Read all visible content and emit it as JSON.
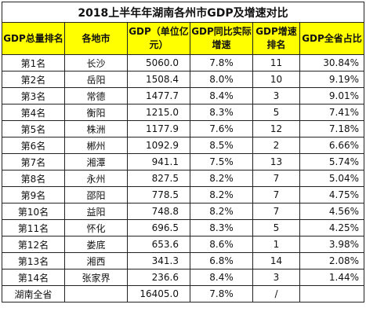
{
  "title": "2018上半年年湖南各州市GDP及增速对比",
  "headers": [
    "GDP总量排名",
    "各地市",
    "GDP（单位亿元）",
    "GDP同比实际增速",
    "GDP增速排名",
    "GDP全省占比"
  ],
  "rows": [
    {
      "rank": "第1名",
      "city": "长沙",
      "gdp": "5060.0",
      "growth": "7.8%",
      "growth_rank": "11",
      "share": "30.84%"
    },
    {
      "rank": "第2名",
      "city": "岳阳",
      "gdp": "1508.4",
      "growth": "8.0%",
      "growth_rank": "10",
      "share": "9.19%"
    },
    {
      "rank": "第3名",
      "city": "常德",
      "gdp": "1477.7",
      "growth": "8.4%",
      "growth_rank": "3",
      "share": "9.01%"
    },
    {
      "rank": "第4名",
      "city": "衡阳",
      "gdp": "1215.0",
      "growth": "8.3%",
      "growth_rank": "5",
      "share": "7.41%"
    },
    {
      "rank": "第5名",
      "city": "株洲",
      "gdp": "1177.9",
      "growth": "7.6%",
      "growth_rank": "12",
      "share": "7.18%"
    },
    {
      "rank": "第6名",
      "city": "郴州",
      "gdp": "1092.9",
      "growth": "8.5%",
      "growth_rank": "2",
      "share": "6.66%"
    },
    {
      "rank": "第7名",
      "city": "湘潭",
      "gdp": "941.1",
      "growth": "7.5%",
      "growth_rank": "13",
      "share": "5.74%"
    },
    {
      "rank": "第8名",
      "city": "永州",
      "gdp": "827.5",
      "growth": "8.2%",
      "growth_rank": "7",
      "share": "5.04%"
    },
    {
      "rank": "第9名",
      "city": "邵阳",
      "gdp": "778.5",
      "growth": "8.2%",
      "growth_rank": "7",
      "share": "4.75%"
    },
    {
      "rank": "第10名",
      "city": "益阳",
      "gdp": "748.8",
      "growth": "8.2%",
      "growth_rank": "7",
      "share": "4.56%"
    },
    {
      "rank": "第11名",
      "city": "怀化",
      "gdp": "696.5",
      "growth": "8.3%",
      "growth_rank": "5",
      "share": "4.25%"
    },
    {
      "rank": "第12名",
      "city": "娄底",
      "gdp": "653.6",
      "growth": "8.6%",
      "growth_rank": "1",
      "share": "3.98%"
    },
    {
      "rank": "第13名",
      "city": "湘西",
      "gdp": "341.3",
      "growth": "6.8%",
      "growth_rank": "14",
      "share": "2.08%"
    },
    {
      "rank": "第14名",
      "city": "张家界",
      "gdp": "236.6",
      "growth": "8.4%",
      "growth_rank": "3",
      "share": "1.44%"
    }
  ],
  "total": {
    "label": "湖南全省",
    "gdp": "16405.0",
    "growth": "7.8%",
    "growth_rank": "/",
    "share": ""
  },
  "colors": {
    "header_bg": "#ffff00",
    "border": "#222222"
  }
}
